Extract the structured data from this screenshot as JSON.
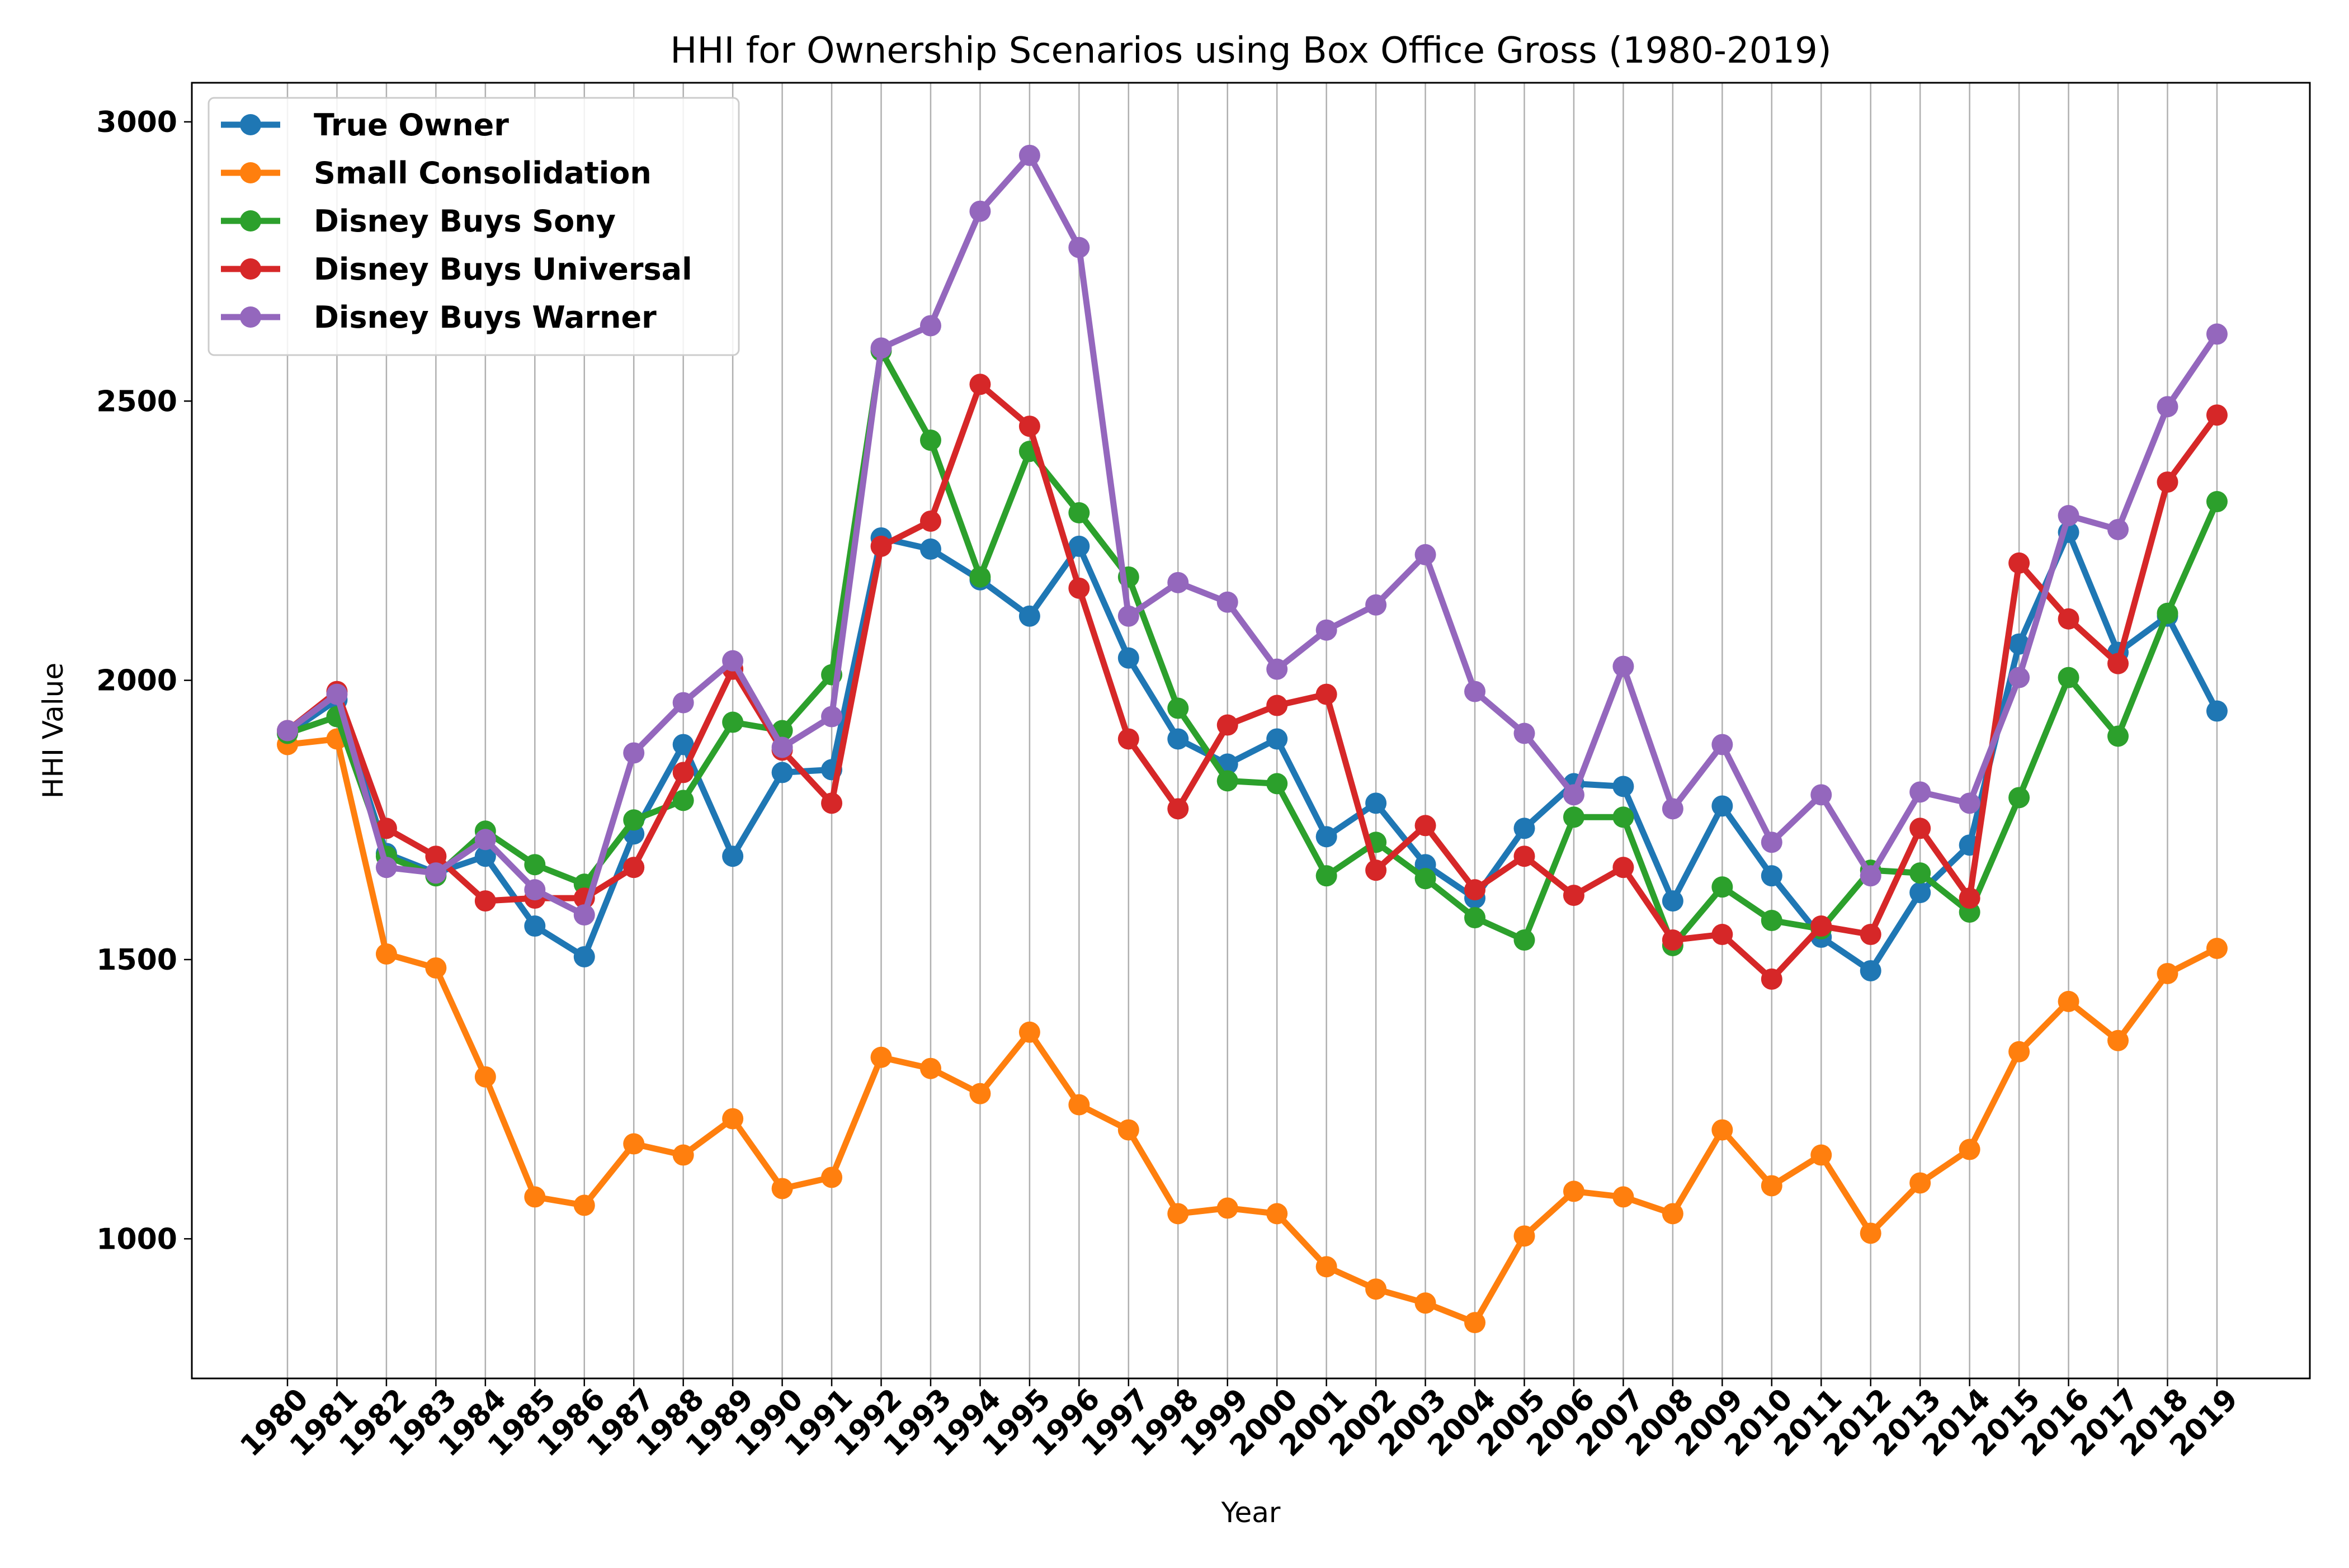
{
  "chart_data": {
    "type": "line",
    "title": "HHI for Ownership Scenarios using Box Office Gross (1980-2019)",
    "xlabel": "Year",
    "ylabel": "HHI Value",
    "ylim": [
      750,
      3070
    ],
    "yticks": [
      1000,
      1500,
      2000,
      2500,
      3000
    ],
    "grid": "vertical",
    "legend_position": "top-left",
    "categories": [
      "1980",
      "1981",
      "1982",
      "1983",
      "1984",
      "1985",
      "1986",
      "1987",
      "1988",
      "1989",
      "1990",
      "1991",
      "1992",
      "1993",
      "1994",
      "1995",
      "1996",
      "1997",
      "1998",
      "1999",
      "2000",
      "2001",
      "2002",
      "2003",
      "2004",
      "2005",
      "2006",
      "2007",
      "2008",
      "2009",
      "2010",
      "2011",
      "2012",
      "2013",
      "2014",
      "2015",
      "2016",
      "2017",
      "2018",
      "2019"
    ],
    "series": [
      {
        "name": "True Owner",
        "color": "#1f77b4",
        "values": [
          1905,
          1965,
          1690,
          1655,
          1685,
          1560,
          1505,
          1725,
          1885,
          1685,
          1835,
          1840,
          2255,
          2235,
          2180,
          2115,
          2240,
          2040,
          1895,
          1850,
          1895,
          1720,
          1780,
          1670,
          1610,
          1735,
          1815,
          1810,
          1605,
          1775,
          1650,
          1540,
          1480,
          1620,
          1705,
          2065,
          2265,
          2050,
          2115,
          1945
        ]
      },
      {
        "name": "Small Consolidation",
        "color": "#ff7f0e",
        "values": [
          1885,
          1895,
          1510,
          1485,
          1290,
          1075,
          1060,
          1170,
          1150,
          1215,
          1090,
          1110,
          1325,
          1305,
          1260,
          1370,
          1240,
          1195,
          1045,
          1055,
          1045,
          950,
          910,
          885,
          850,
          1005,
          1085,
          1075,
          1045,
          1195,
          1095,
          1150,
          1010,
          1100,
          1160,
          1335,
          1425,
          1355,
          1475,
          1520
        ]
      },
      {
        "name": "Disney Buys Sony",
        "color": "#2ca02c",
        "values": [
          1905,
          1935,
          1685,
          1650,
          1730,
          1670,
          1635,
          1750,
          1785,
          1925,
          1910,
          2010,
          2590,
          2430,
          2185,
          2410,
          2300,
          2185,
          1950,
          1820,
          1815,
          1650,
          1710,
          1645,
          1575,
          1535,
          1755,
          1755,
          1525,
          1630,
          1570,
          1555,
          1660,
          1655,
          1585,
          1790,
          2005,
          1900,
          2120,
          2320
        ]
      },
      {
        "name": "Disney Buys Universal",
        "color": "#d62728",
        "values": [
          1910,
          1980,
          1735,
          1685,
          1605,
          1610,
          1610,
          1665,
          1835,
          2020,
          1875,
          1780,
          2240,
          2285,
          2530,
          2455,
          2165,
          1895,
          1770,
          1920,
          1955,
          1975,
          1660,
          1740,
          1625,
          1685,
          1615,
          1665,
          1535,
          1545,
          1465,
          1560,
          1545,
          1735,
          1610,
          2210,
          2110,
          2030,
          2355,
          2475
        ]
      },
      {
        "name": "Disney Buys Warner",
        "color": "#9467bd",
        "values": [
          1910,
          1975,
          1665,
          1655,
          1715,
          1625,
          1580,
          1870,
          1960,
          2035,
          1880,
          1935,
          2595,
          2635,
          2840,
          2940,
          2775,
          2115,
          2175,
          2140,
          2020,
          2090,
          2135,
          2225,
          1980,
          1905,
          1795,
          2025,
          1770,
          1885,
          1710,
          1795,
          1650,
          1800,
          1780,
          2005,
          2295,
          2270,
          2490,
          2620
        ]
      }
    ]
  }
}
